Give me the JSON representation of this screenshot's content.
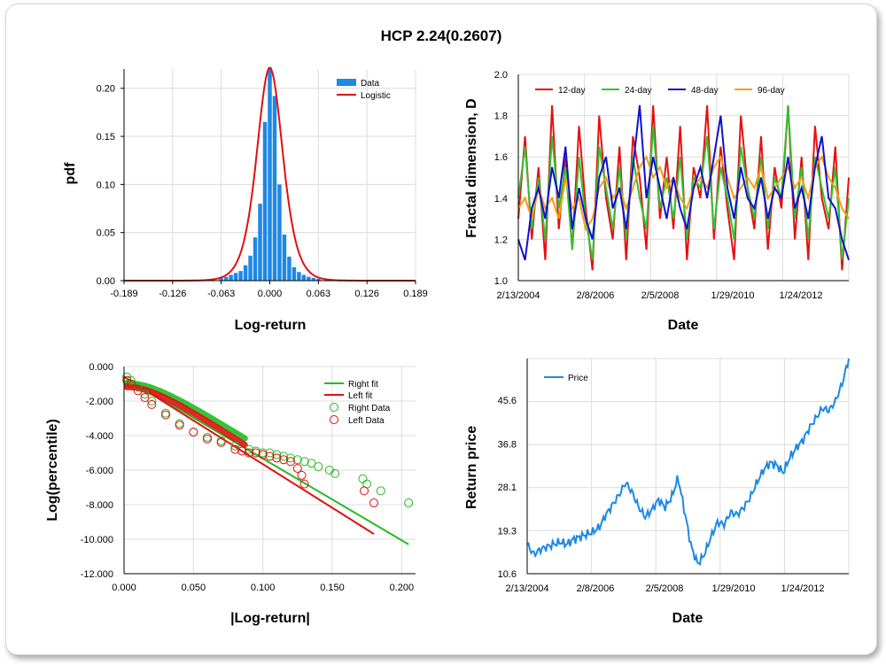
{
  "title": "HCP 2.24(0.2607)",
  "colors": {
    "data_bar": "#1e88e5",
    "fit_line": "#e01010",
    "d12": "#e81010",
    "d24": "#33c033",
    "d48": "#1010d0",
    "d96": "#f0a010",
    "right_fit": "#22bb22",
    "left_fit": "#e01010",
    "price": "#1e88e5"
  },
  "panels": {
    "histogram": {
      "xlabel": "Log-return",
      "ylabel": "pdf",
      "legend": [
        "Data",
        "Logistic"
      ]
    },
    "fractal": {
      "xlabel": "Date",
      "ylabel": "Fractal dimension, D",
      "legend": [
        "12-day",
        "24-day",
        "48-day",
        "96-day"
      ]
    },
    "tail": {
      "xlabel": "|Log-return|",
      "ylabel": "Log(percentile)",
      "legend": [
        "Right fit",
        "Left fit",
        "Right Data",
        "Left Data"
      ]
    },
    "price": {
      "xlabel": "Date",
      "ylabel": "Return price",
      "legend": [
        "Price"
      ]
    }
  },
  "chart_data": [
    {
      "type": "bar",
      "xlabel": "Log-return",
      "ylabel": "pdf",
      "xlim": [
        -0.189,
        0.189
      ],
      "ylim": [
        0,
        0.22
      ],
      "xticks": [
        "-0.189",
        "-0.126",
        "-0.063",
        "0.000",
        "0.063",
        "0.126",
        "0.189"
      ],
      "yticks": [
        "0.00",
        "0.05",
        "0.10",
        "0.15",
        "0.20"
      ],
      "legend_position": "top-right",
      "bin_centers": [
        -0.063,
        -0.0567,
        -0.0504,
        -0.0441,
        -0.0378,
        -0.0315,
        -0.0252,
        -0.0189,
        -0.0126,
        -0.0063,
        0.0,
        0.0063,
        0.0126,
        0.0189,
        0.0252,
        0.0315,
        0.0378,
        0.0441,
        0.0504,
        0.0567,
        0.063
      ],
      "series": [
        {
          "name": "Data",
          "values": [
            0.003,
            0.004,
            0.006,
            0.008,
            0.01,
            0.016,
            0.026,
            0.045,
            0.08,
            0.165,
            0.222,
            0.192,
            0.1,
            0.048,
            0.025,
            0.014,
            0.009,
            0.006,
            0.004,
            0.003,
            0.002
          ]
        },
        {
          "name": "Logistic",
          "location": 0.0,
          "scale": 0.0113
        }
      ]
    },
    {
      "type": "line",
      "xlabel": "Date",
      "ylabel": "Fractal dimension, D",
      "xticks": [
        "2/13/2004",
        "2/8/2006",
        "2/5/2008",
        "1/29/2010",
        "1/24/2012"
      ],
      "x_range": [
        "2/13/2004",
        "2013-05"
      ],
      "ylim": [
        1.0,
        2.0
      ],
      "yticks": [
        "1.0",
        "1.2",
        "1.4",
        "1.6",
        "1.8",
        "2.0"
      ],
      "legend_position": "top",
      "series": [
        {
          "name": "12-day",
          "y": [
            1.3,
            1.7,
            1.2,
            1.55,
            1.1,
            1.85,
            1.25,
            1.6,
            1.15,
            1.75,
            1.35,
            1.05,
            1.8,
            1.4,
            1.2,
            1.65,
            1.1,
            1.7,
            1.5,
            1.15,
            1.85,
            1.3,
            1.6,
            1.25,
            1.75,
            1.1,
            1.55,
            1.4,
            1.85,
            1.2,
            1.65,
            1.35,
            1.1,
            1.8,
            1.45,
            1.25,
            1.7,
            1.15,
            1.55,
            1.35,
            1.85,
            1.2,
            1.6,
            1.1,
            1.75,
            1.4,
            1.25,
            1.65,
            1.05,
            1.5
          ]
        },
        {
          "name": "24-day",
          "y": [
            1.4,
            1.65,
            1.25,
            1.5,
            1.2,
            1.7,
            1.35,
            1.55,
            1.15,
            1.6,
            1.3,
            1.1,
            1.65,
            1.45,
            1.25,
            1.55,
            1.2,
            1.6,
            1.4,
            1.25,
            1.75,
            1.35,
            1.5,
            1.3,
            1.6,
            1.2,
            1.5,
            1.45,
            1.7,
            1.25,
            1.55,
            1.4,
            1.2,
            1.65,
            1.45,
            1.3,
            1.6,
            1.25,
            1.5,
            1.4,
            1.85,
            1.3,
            1.55,
            1.2,
            1.6,
            1.45,
            1.3,
            1.55,
            1.1,
            1.4
          ]
        },
        {
          "name": "48-day",
          "y": [
            1.2,
            1.1,
            1.35,
            1.45,
            1.3,
            1.55,
            1.4,
            1.65,
            1.25,
            1.45,
            1.3,
            1.2,
            1.5,
            1.6,
            1.35,
            1.45,
            1.25,
            1.55,
            1.85,
            1.4,
            1.6,
            1.45,
            1.3,
            1.5,
            1.35,
            1.25,
            1.45,
            1.55,
            1.4,
            1.6,
            1.8,
            1.45,
            1.3,
            1.55,
            1.4,
            1.35,
            1.5,
            1.3,
            1.45,
            1.4,
            1.6,
            1.35,
            1.45,
            1.3,
            1.55,
            1.7,
            1.4,
            1.35,
            1.2,
            1.1
          ]
        },
        {
          "name": "96-day",
          "y": [
            1.35,
            1.4,
            1.3,
            1.45,
            1.35,
            1.4,
            1.3,
            1.5,
            1.35,
            1.4,
            1.25,
            1.3,
            1.45,
            1.5,
            1.4,
            1.45,
            1.35,
            1.45,
            1.55,
            1.6,
            1.5,
            1.55,
            1.45,
            1.5,
            1.4,
            1.35,
            1.45,
            1.5,
            1.45,
            1.55,
            1.6,
            1.5,
            1.4,
            1.45,
            1.5,
            1.45,
            1.55,
            1.4,
            1.45,
            1.5,
            1.55,
            1.45,
            1.5,
            1.4,
            1.55,
            1.6,
            1.5,
            1.45,
            1.35,
            1.3
          ]
        }
      ]
    },
    {
      "type": "scatter",
      "xlabel": "|Log-return|",
      "ylabel": "Log(percentile)",
      "xlim": [
        0.0,
        0.21
      ],
      "ylim": [
        -12.0,
        0.0
      ],
      "xticks": [
        "0.000",
        "0.050",
        "0.100",
        "0.150",
        "0.200"
      ],
      "yticks": [
        "0.000",
        "-2.000",
        "-4.000",
        "-6.000",
        "-8.000",
        "-10.000",
        "-12.000"
      ],
      "legend_position": "top-right",
      "series": [
        {
          "name": "Right fit",
          "x": [
            0.0,
            0.205
          ],
          "y": [
            -0.6,
            -10.3
          ]
        },
        {
          "name": "Left fit",
          "x": [
            0.0,
            0.18
          ],
          "y": [
            -0.6,
            -9.7
          ]
        },
        {
          "name": "Right Data",
          "x": [
            0.002,
            0.005,
            0.01,
            0.015,
            0.02,
            0.03,
            0.04,
            0.05,
            0.06,
            0.07,
            0.08,
            0.09,
            0.095,
            0.1,
            0.105,
            0.11,
            0.115,
            0.12,
            0.125,
            0.13,
            0.135,
            0.14,
            0.148,
            0.152,
            0.172,
            0.175,
            0.185,
            0.205
          ],
          "y": [
            -0.6,
            -0.8,
            -1.2,
            -1.6,
            -2.0,
            -2.7,
            -3.3,
            -3.8,
            -4.1,
            -4.3,
            -4.6,
            -4.8,
            -4.9,
            -5.0,
            -5.0,
            -5.1,
            -5.2,
            -5.3,
            -5.4,
            -5.5,
            -5.6,
            -5.8,
            -6.0,
            -6.2,
            -6.5,
            -6.8,
            -7.2,
            -7.9
          ]
        },
        {
          "name": "Left Data",
          "x": [
            0.002,
            0.005,
            0.01,
            0.015,
            0.02,
            0.03,
            0.04,
            0.05,
            0.06,
            0.07,
            0.08,
            0.085,
            0.09,
            0.095,
            0.1,
            0.105,
            0.11,
            0.115,
            0.12,
            0.125,
            0.128,
            0.13,
            0.173,
            0.18
          ],
          "y": [
            -0.8,
            -1.0,
            -1.4,
            -1.8,
            -2.2,
            -2.8,
            -3.4,
            -3.8,
            -4.2,
            -4.4,
            -4.8,
            -4.9,
            -5.0,
            -5.0,
            -5.1,
            -5.2,
            -5.3,
            -5.4,
            -5.5,
            -5.9,
            -6.3,
            -6.8,
            -7.2,
            -7.9
          ]
        }
      ]
    },
    {
      "type": "line",
      "xlabel": "Date",
      "ylabel": "Return price",
      "xticks": [
        "2/13/2004",
        "2/8/2006",
        "2/5/2008",
        "1/29/2010",
        "1/24/2012"
      ],
      "x_range": [
        "2/13/2004",
        "2013-05"
      ],
      "ylim": [
        10.6,
        54.0
      ],
      "yticks": [
        "10.6",
        "19.3",
        "28.1",
        "36.8",
        "45.6"
      ],
      "legend_position": "top-left",
      "series": [
        {
          "name": "Price",
          "y": [
            16.5,
            14.5,
            15.5,
            16.0,
            16.5,
            17.0,
            16.5,
            17.5,
            18.0,
            18.5,
            19.0,
            20.0,
            22.5,
            24.5,
            26.5,
            29.0,
            27.0,
            24.0,
            22.0,
            23.5,
            25.5,
            24.0,
            26.0,
            30.0,
            23.0,
            16.0,
            12.5,
            14.5,
            18.0,
            21.0,
            20.5,
            23.0,
            22.5,
            24.0,
            26.0,
            29.0,
            31.5,
            33.0,
            32.5,
            31.0,
            34.0,
            36.0,
            37.5,
            40.0,
            42.0,
            44.0,
            43.5,
            45.5,
            49.0,
            54.0
          ]
        }
      ]
    }
  ]
}
